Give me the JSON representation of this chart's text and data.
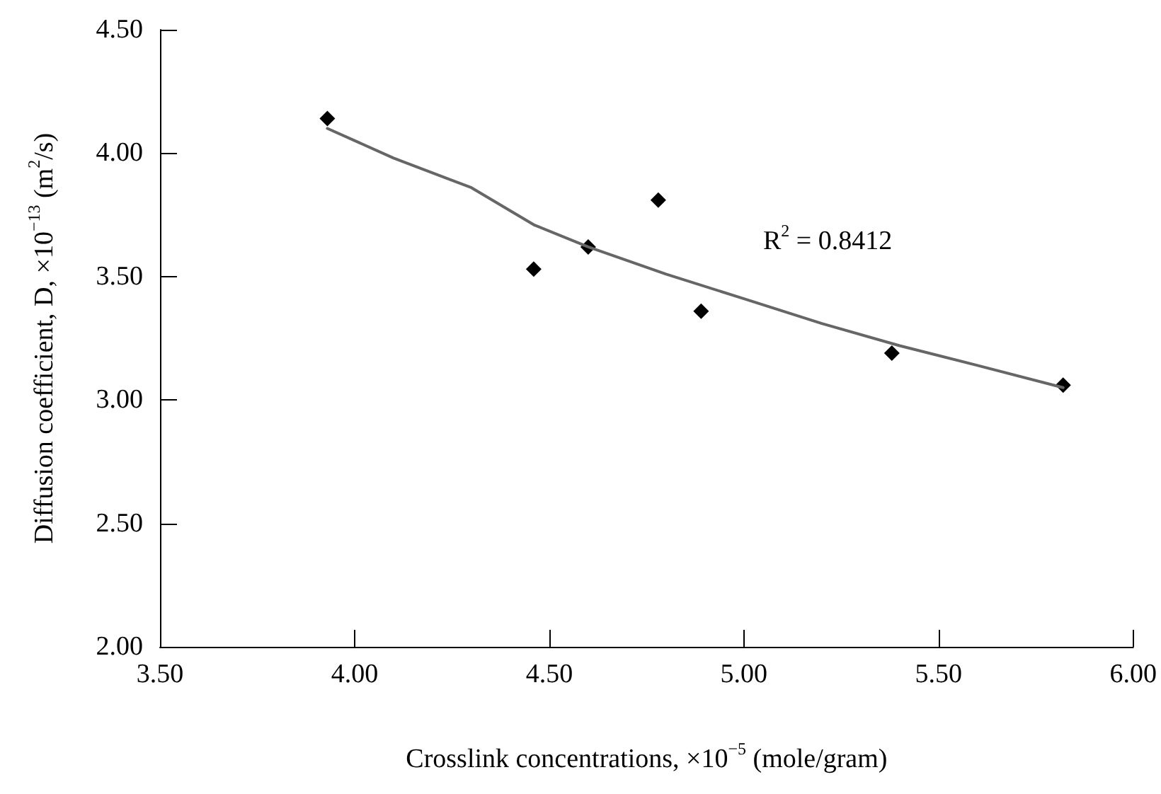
{
  "chart_data": {
    "type": "scatter",
    "xlabel": "Crosslink concentrations, ×10$^{−5}$ (mole/gram)",
    "ylabel": "Diffusion coefficient, D, ×10$^{−13}$ (m$^{2}$/s)",
    "x": [
      3.93,
      4.46,
      4.6,
      4.78,
      4.89,
      5.38,
      5.82
    ],
    "series": [
      {
        "color": "#000000",
        "marker": "diamond",
        "values": [
          4.14,
          3.53,
          3.62,
          3.81,
          3.36,
          3.19,
          3.06
        ]
      },
      {
        "type": "line",
        "color": "#666666",
        "marker": "none",
        "line_style": "solid",
        "x": [
          3.93,
          4.1,
          4.3,
          4.46,
          4.6,
          4.8,
          5.0,
          5.2,
          5.4,
          5.6,
          5.82
        ],
        "values": [
          4.1,
          3.98,
          3.86,
          3.71,
          3.62,
          3.51,
          3.41,
          3.31,
          3.22,
          3.14,
          3.05
        ]
      }
    ],
    "annotations": [
      "R$^{2}$ = 0.8412"
    ],
    "xlim": [
      3.5,
      6.0
    ],
    "xticks": [
      {
        "value": 3.5,
        "label": "3.50"
      },
      {
        "value": 4.0,
        "label": "4.00"
      },
      {
        "value": 4.5,
        "label": "4.50"
      },
      {
        "value": 5.0,
        "label": "5.00"
      },
      {
        "value": 5.5,
        "label": "5.50"
      },
      {
        "value": 6.0,
        "label": "6.00"
      }
    ],
    "ylim": [
      2.0,
      4.5
    ],
    "yticks": [
      {
        "value": 2.0,
        "label": "2.00"
      },
      {
        "value": 2.5,
        "label": "2.50"
      },
      {
        "value": 3.0,
        "label": "3.00"
      },
      {
        "value": 3.5,
        "label": "3.50"
      },
      {
        "value": 4.0,
        "label": "4.00"
      },
      {
        "value": 4.5,
        "label": "4.50"
      }
    ],
    "grid": false
  }
}
